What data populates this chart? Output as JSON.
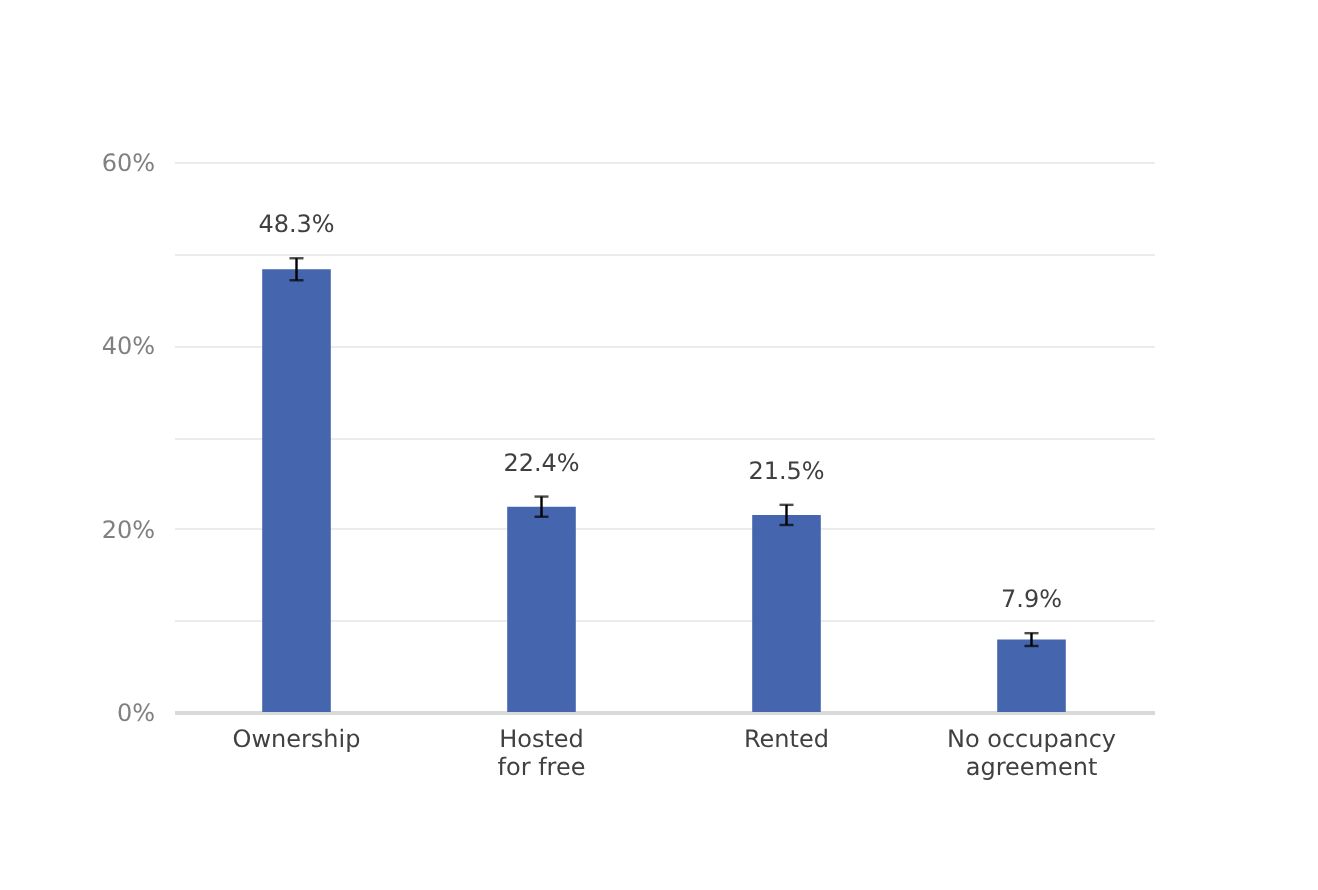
{
  "chart_data": {
    "type": "bar",
    "categories": [
      "Ownership",
      "Hosted\nfor free",
      "Rented",
      "No occupancy\nagreement"
    ],
    "values": [
      48.3,
      22.4,
      21.5,
      7.9
    ],
    "errors": [
      1.2,
      1.1,
      1.1,
      0.7
    ],
    "value_labels": [
      "48.3%",
      "22.4%",
      "21.5%",
      "7.9%"
    ],
    "color": "#4565ae",
    "ylim": [
      0,
      60
    ],
    "yticks": [
      {
        "value": 0,
        "label": "0%"
      },
      {
        "value": 10,
        "label": null
      },
      {
        "value": 20,
        "label": "20%"
      },
      {
        "value": 30,
        "label": null
      },
      {
        "value": 40,
        "label": "40%"
      },
      {
        "value": 50,
        "label": null
      },
      {
        "value": 60,
        "label": "60%"
      }
    ],
    "grid": true
  }
}
